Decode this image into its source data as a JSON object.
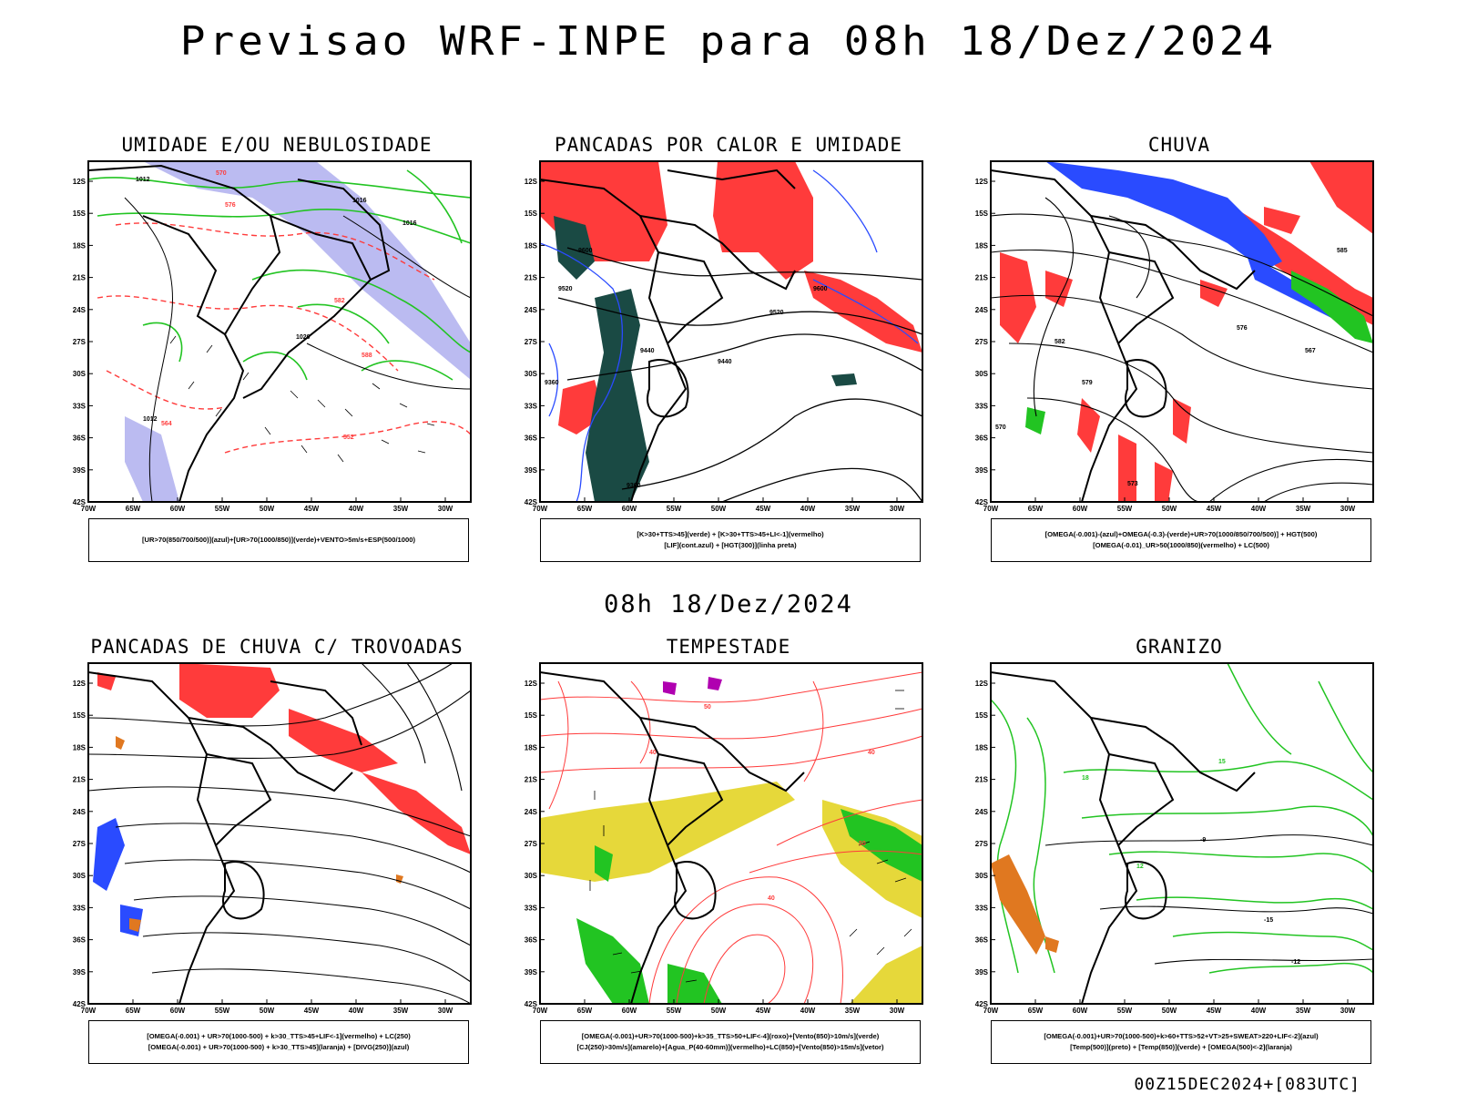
{
  "main_title": "Previsao WRF-INPE  para 08h 18/Dez/2024",
  "mid_title": "08h 18/Dez/2024",
  "footer": "00Z15DEC2024+[083UTC]",
  "lat_ticks": [
    "12S",
    "15S",
    "18S",
    "21S",
    "24S",
    "27S",
    "30S",
    "33S",
    "36S",
    "39S",
    "42S"
  ],
  "lon_ticks": [
    "70W",
    "65W",
    "60W",
    "55W",
    "50W",
    "45W",
    "40W",
    "35W",
    "30W"
  ],
  "colors": {
    "green": "#22c422",
    "red": "#ff3b3b",
    "blue": "#2a4bff",
    "lavender": "#b4b4f0",
    "darkteal": "#1a4a44",
    "yellow": "#e6d83a",
    "orange": "#e07820",
    "purple": "#b000b0"
  },
  "panels": [
    {
      "title": "UMIDADE E/OU NEBULOSIDADE",
      "legend": [
        "[UR>70(850/700/500)](azul)+[UR>70(1000/850)](verde)+VENTO>5m/s+ESP(500/1000)"
      ],
      "contour_labels": [
        "1012",
        "1016",
        "1020",
        "1016",
        "1012",
        "570",
        "576",
        "564",
        "552",
        "588",
        "582"
      ]
    },
    {
      "title": "PANCADAS POR CALOR E UMIDADE",
      "legend": [
        "[K>30+TTS>45](verde) + [K>30+TTS>45+LI<-1](vermelho)",
        "[LIF](cont.azul) + [HGT(300)](linha preta)"
      ],
      "contour_labels": [
        "9600",
        "9520",
        "9600",
        "9520",
        "9440",
        "9440",
        "9360",
        "9360"
      ]
    },
    {
      "title": "CHUVA",
      "legend": [
        "[OMEGA(-0.001)-(azul)+OMEGA(-0.3)-(verde)+UR>70(1000/850/700/500)] + HGT(500)",
        "[OMEGA(-0.01)_UR>50(1000/850)(vermelho) + LC(500)"
      ],
      "contour_labels": [
        "585",
        "582",
        "579",
        "576",
        "573",
        "570",
        "567"
      ]
    },
    {
      "title": "PANCADAS DE CHUVA C/ TROVOADAS",
      "legend": [
        "[OMEGA(-0.001) + UR>70(1000-500) + k>30_TTS>45+LIF<-1](vermelho) + LC(250)",
        "[OMEGA(-0.001) + UR>70(1000-500) + k>30_TTS>45](laranja) + [DIVG(250)](azul)"
      ],
      "contour_labels": []
    },
    {
      "title": "TEMPESTADE",
      "legend": [
        "[OMEGA(-0.001)+UR>70(1000-500)+k>35_TTS>50+LIF<-4](roxo)+[Vento(850)>10m/s](verde)",
        "[CJ(250)>30m/s](amarelo)+[Agua_P(40-60mm)](vermelho)+LC(850)+[Vento(850)>15m/s](vetor)"
      ],
      "contour_labels": [
        "40",
        "50",
        "40",
        "50",
        "40"
      ]
    },
    {
      "title": "GRANIZO",
      "legend": [
        "[OMEGA(-0.001)+UR>70(1000-500)+k>60+TTS>52+VT>25+SWEAT>220+LIF<-2](azul)",
        "[Temp(500)](preto) + [Temp(850)](verde) + [OMEGA(500)<-2](laranja)"
      ],
      "contour_labels": [
        "-15",
        "-12",
        "-9",
        "12",
        "15",
        "18"
      ]
    }
  ]
}
